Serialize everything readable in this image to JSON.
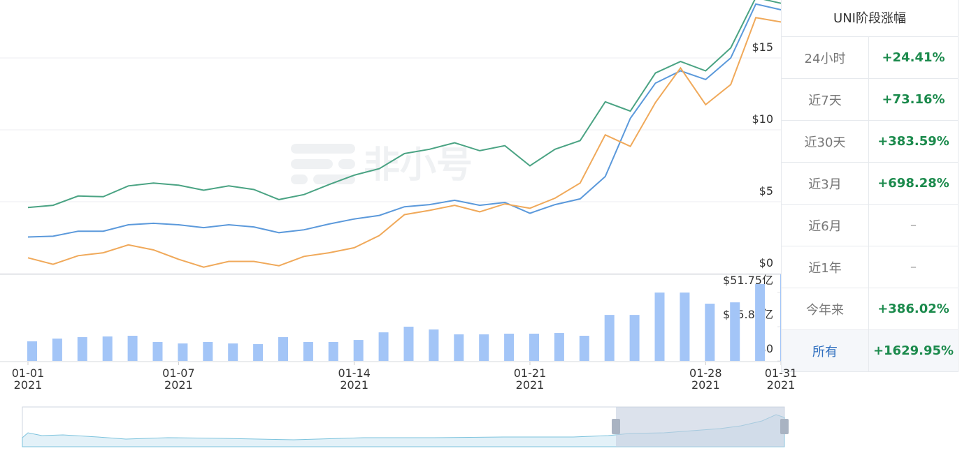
{
  "chart_data": {
    "type": "line",
    "categories": [
      "01-01\n2021",
      null,
      null,
      null,
      null,
      null,
      "01-07\n2021",
      null,
      null,
      null,
      null,
      null,
      null,
      "01-14\n2021",
      null,
      null,
      null,
      null,
      null,
      null,
      "01-21\n2021",
      null,
      null,
      null,
      null,
      null,
      null,
      "01-28\n2021",
      null,
      null,
      "01-31\n2021"
    ],
    "series": [
      {
        "color": "#4aa383",
        "values": [
          4.6,
          4.75,
          5.4,
          5.35,
          6.1,
          6.3,
          6.15,
          5.8,
          6.1,
          5.85,
          5.15,
          5.5,
          6.2,
          6.85,
          7.3,
          8.35,
          8.65,
          9.1,
          8.55,
          8.9,
          7.5,
          8.65,
          9.25,
          11.95,
          11.3,
          13.95,
          14.75,
          14.1,
          15.7,
          19.2,
          18.8
        ]
      },
      {
        "color": "#5b99db",
        "values": [
          2.55,
          2.6,
          2.95,
          2.95,
          3.4,
          3.5,
          3.4,
          3.2,
          3.4,
          3.25,
          2.85,
          3.05,
          3.45,
          3.8,
          4.05,
          4.65,
          4.8,
          5.1,
          4.75,
          4.95,
          4.2,
          4.8,
          5.2,
          6.75,
          10.8,
          13.25,
          14.1,
          13.5,
          15.0,
          18.75,
          18.35
        ]
      },
      {
        "color": "#f0a95a",
        "values": [
          1.1,
          0.65,
          1.25,
          1.45,
          2.0,
          1.65,
          1.0,
          0.45,
          0.85,
          0.85,
          0.55,
          1.2,
          1.45,
          1.8,
          2.65,
          4.1,
          4.4,
          4.75,
          4.3,
          4.85,
          4.55,
          5.25,
          6.3,
          9.65,
          8.85,
          11.9,
          14.3,
          11.75,
          13.15,
          17.8,
          17.5
        ]
      }
    ],
    "ylim": [
      0,
      20
    ],
    "yticks": [
      {
        "value": 0,
        "label": "$0"
      },
      {
        "value": 5,
        "label": "$5"
      },
      {
        "value": 10,
        "label": "$10"
      },
      {
        "value": 15,
        "label": "$15"
      }
    ],
    "grid": true,
    "volume": {
      "type": "bar",
      "color": "#a3c5f7",
      "values": [
        14.8,
        16.9,
        18.0,
        18.5,
        19.0,
        14.3,
        13.2,
        14.3,
        13.2,
        12.7,
        18.0,
        14.3,
        14.3,
        15.8,
        21.6,
        25.9,
        23.8,
        20.1,
        20.1,
        20.6,
        20.6,
        21.1,
        19.0,
        34.8,
        34.8,
        51.7,
        51.7,
        43.3,
        44.3,
        58.1,
        65.5
      ],
      "ylim": [
        0,
        65.5
      ],
      "yticks": [
        {
          "value": 0,
          "label": "$0"
        },
        {
          "value": 25.87,
          "label": "$25.87亿"
        },
        {
          "value": 51.75,
          "label": "$51.75亿"
        }
      ]
    }
  },
  "watermark": "非小号",
  "table": {
    "title": "UNI阶段涨幅",
    "rows": [
      [
        "24小时",
        "+24.41%"
      ],
      [
        "近7天",
        "+73.16%"
      ],
      [
        "近30天",
        "+383.59%"
      ],
      [
        "近3月",
        "+698.28%"
      ],
      [
        "近6月",
        "–"
      ],
      [
        "近1年",
        "–"
      ],
      [
        "今年来",
        "+386.02%"
      ],
      [
        "所有",
        "+1629.95%"
      ]
    ]
  }
}
